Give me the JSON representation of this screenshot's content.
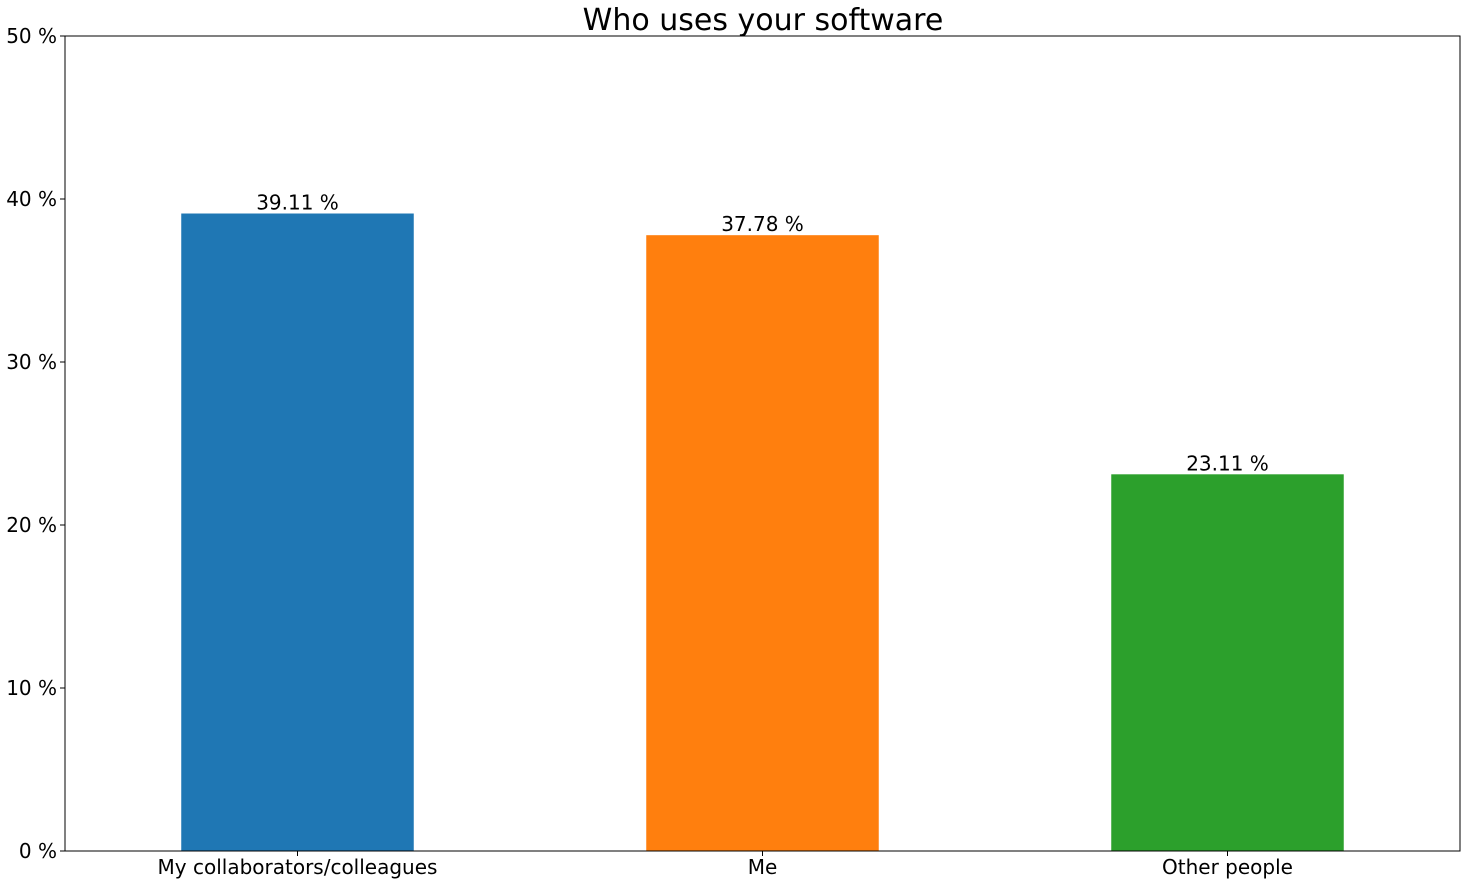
{
  "chart_data": {
    "type": "bar",
    "title": "Who uses your software",
    "xlabel": "",
    "ylabel": "",
    "categories": [
      "My collaborators/colleagues",
      "Me",
      "Other people"
    ],
    "values": [
      39.11,
      37.78,
      23.11
    ],
    "data_labels": [
      "39.11 %",
      "37.78 %",
      "23.11 %"
    ],
    "colors": [
      "#1f77b4",
      "#ff7f0e",
      "#2ca02c"
    ],
    "ylim": [
      0,
      50
    ],
    "yticks": [
      0,
      10,
      20,
      30,
      40,
      50
    ],
    "ytick_labels": [
      "0 %",
      "10 %",
      "20 %",
      "30 %",
      "40 %",
      "50 %"
    ],
    "grid": false,
    "legend": "none"
  }
}
